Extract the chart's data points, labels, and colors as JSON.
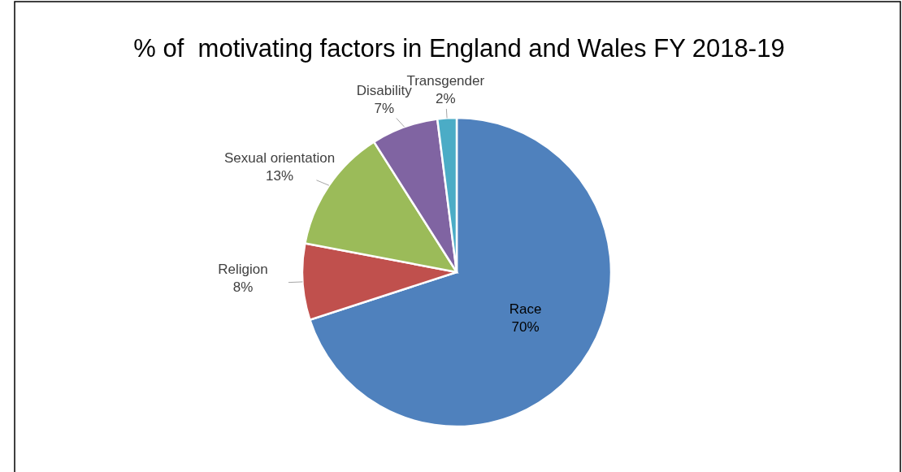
{
  "chart_data": {
    "type": "pie",
    "title": "% of  motivating factors in England and Wales FY 2018-19",
    "categories": [
      "Race",
      "Religion",
      "Sexual orientation",
      "Disability",
      "Transgender"
    ],
    "values": [
      70,
      8,
      13,
      7,
      2
    ],
    "value_labels": [
      "70%",
      "8%",
      "13%",
      "7%",
      "2%"
    ],
    "colors": [
      "#4f81bd",
      "#c0504d",
      "#9bbb59",
      "#8064a2",
      "#4bacc6"
    ]
  }
}
